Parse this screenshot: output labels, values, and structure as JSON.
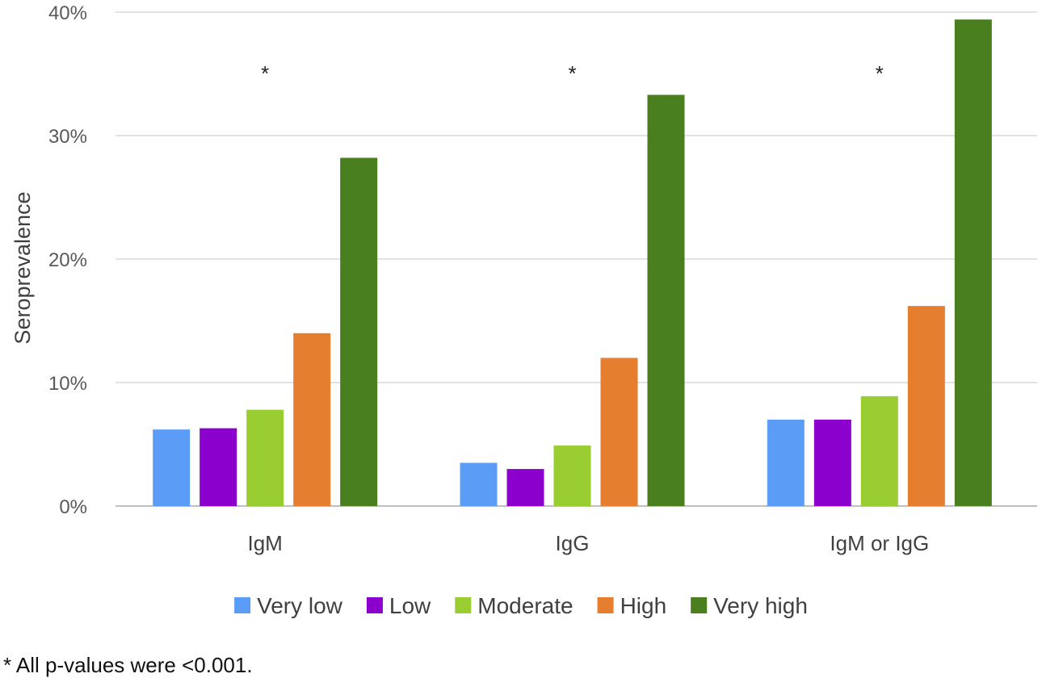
{
  "chart_data": {
    "type": "bar",
    "title": "",
    "xlabel": "",
    "ylabel": "Seroprevalence",
    "categories": [
      "IgM",
      "IgG",
      "IgM or IgG"
    ],
    "series": [
      {
        "name": "Very low",
        "color": "#5b9cf7",
        "values": [
          6.2,
          3.5,
          7.0
        ]
      },
      {
        "name": "Low",
        "color": "#8b00cc",
        "values": [
          6.3,
          3.0,
          7.0
        ]
      },
      {
        "name": "Moderate",
        "color": "#9acd32",
        "values": [
          7.8,
          4.9,
          8.9
        ]
      },
      {
        "name": "High",
        "color": "#e67e30",
        "values": [
          14.0,
          12.0,
          16.2
        ]
      },
      {
        "name": "Very high",
        "color": "#4a7f1f",
        "values": [
          28.2,
          33.3,
          39.4
        ]
      }
    ],
    "ylim": [
      0,
      40
    ],
    "yticks": [
      0,
      10,
      20,
      30,
      40
    ],
    "ytick_labels": [
      "0%",
      "10%",
      "20%",
      "30%",
      "40%"
    ],
    "grid": true,
    "legend_position": "bottom",
    "annotations": [
      "*",
      "*",
      "*"
    ],
    "footnote": "* All p-values were <0.001."
  }
}
